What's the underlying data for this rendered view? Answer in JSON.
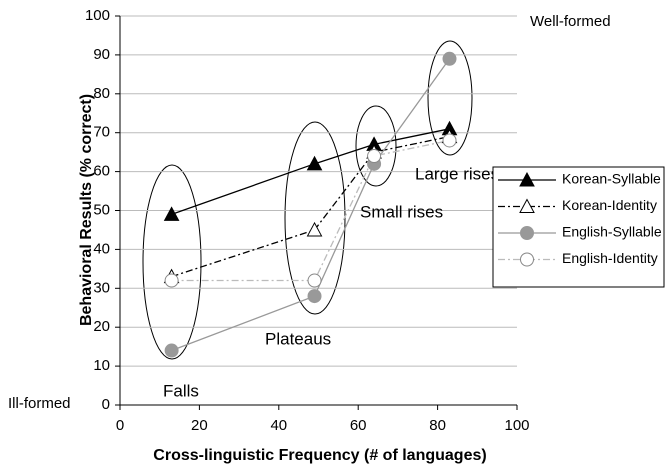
{
  "chart_data": {
    "type": "line",
    "xlabel": "Cross-linguistic Frequency (# of languages)",
    "ylabel": "Behavioral Results (% correct)",
    "x": [
      13,
      49,
      64,
      83
    ],
    "series": [
      {
        "name": "Korean-Syllable",
        "color": "#000000",
        "marker": "triangle",
        "filled": true,
        "dash": "solid",
        "values": [
          49,
          62,
          67,
          71
        ]
      },
      {
        "name": "Korean-Identity",
        "color": "#000000",
        "marker": "triangle",
        "filled": false,
        "dash": "dashdot",
        "values": [
          33,
          45,
          65,
          69
        ]
      },
      {
        "name": "English-Syllable",
        "color": "#999999",
        "marker": "circle",
        "filled": true,
        "dash": "solid",
        "values": [
          14,
          28,
          62,
          89
        ]
      },
      {
        "name": "English-Identity",
        "color": "#bbbbbb",
        "marker": "circle",
        "filled": false,
        "dash": "dashdot",
        "values": [
          32,
          32,
          64,
          68
        ]
      }
    ],
    "xlim": [
      0,
      100
    ],
    "ylim": [
      0,
      100
    ],
    "xticks": [
      0,
      20,
      40,
      60,
      80,
      100
    ],
    "yticks": [
      0,
      10,
      20,
      30,
      40,
      50,
      60,
      70,
      80,
      90,
      100
    ],
    "grid": true,
    "legend": "right",
    "annotations": [
      "Well-formed",
      "Ill-formed",
      "Falls",
      "Plateaus",
      "Small rises",
      "Large rises"
    ]
  }
}
